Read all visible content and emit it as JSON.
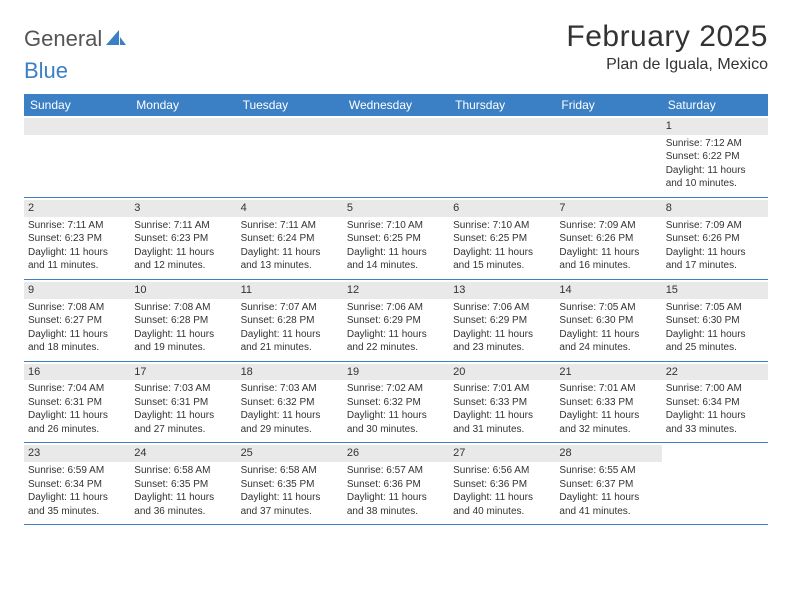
{
  "brand": {
    "part1": "General",
    "part2": "Blue"
  },
  "title": "February 2025",
  "location": "Plan de Iguala, Mexico",
  "colors": {
    "header_bg": "#3b7fc4",
    "header_text": "#ffffff",
    "band_bg": "#e9e9e9",
    "text": "#333333",
    "rule": "#3b7fc4"
  },
  "dayNames": [
    "Sunday",
    "Monday",
    "Tuesday",
    "Wednesday",
    "Thursday",
    "Friday",
    "Saturday"
  ],
  "weeks": [
    [
      {
        "n": "",
        "empty": true
      },
      {
        "n": "",
        "empty": true
      },
      {
        "n": "",
        "empty": true
      },
      {
        "n": "",
        "empty": true
      },
      {
        "n": "",
        "empty": true
      },
      {
        "n": "",
        "empty": true
      },
      {
        "n": "1",
        "sunrise": "Sunrise: 7:12 AM",
        "sunset": "Sunset: 6:22 PM",
        "day1": "Daylight: 11 hours",
        "day2": "and 10 minutes."
      }
    ],
    [
      {
        "n": "2",
        "sunrise": "Sunrise: 7:11 AM",
        "sunset": "Sunset: 6:23 PM",
        "day1": "Daylight: 11 hours",
        "day2": "and 11 minutes."
      },
      {
        "n": "3",
        "sunrise": "Sunrise: 7:11 AM",
        "sunset": "Sunset: 6:23 PM",
        "day1": "Daylight: 11 hours",
        "day2": "and 12 minutes."
      },
      {
        "n": "4",
        "sunrise": "Sunrise: 7:11 AM",
        "sunset": "Sunset: 6:24 PM",
        "day1": "Daylight: 11 hours",
        "day2": "and 13 minutes."
      },
      {
        "n": "5",
        "sunrise": "Sunrise: 7:10 AM",
        "sunset": "Sunset: 6:25 PM",
        "day1": "Daylight: 11 hours",
        "day2": "and 14 minutes."
      },
      {
        "n": "6",
        "sunrise": "Sunrise: 7:10 AM",
        "sunset": "Sunset: 6:25 PM",
        "day1": "Daylight: 11 hours",
        "day2": "and 15 minutes."
      },
      {
        "n": "7",
        "sunrise": "Sunrise: 7:09 AM",
        "sunset": "Sunset: 6:26 PM",
        "day1": "Daylight: 11 hours",
        "day2": "and 16 minutes."
      },
      {
        "n": "8",
        "sunrise": "Sunrise: 7:09 AM",
        "sunset": "Sunset: 6:26 PM",
        "day1": "Daylight: 11 hours",
        "day2": "and 17 minutes."
      }
    ],
    [
      {
        "n": "9",
        "sunrise": "Sunrise: 7:08 AM",
        "sunset": "Sunset: 6:27 PM",
        "day1": "Daylight: 11 hours",
        "day2": "and 18 minutes."
      },
      {
        "n": "10",
        "sunrise": "Sunrise: 7:08 AM",
        "sunset": "Sunset: 6:28 PM",
        "day1": "Daylight: 11 hours",
        "day2": "and 19 minutes."
      },
      {
        "n": "11",
        "sunrise": "Sunrise: 7:07 AM",
        "sunset": "Sunset: 6:28 PM",
        "day1": "Daylight: 11 hours",
        "day2": "and 21 minutes."
      },
      {
        "n": "12",
        "sunrise": "Sunrise: 7:06 AM",
        "sunset": "Sunset: 6:29 PM",
        "day1": "Daylight: 11 hours",
        "day2": "and 22 minutes."
      },
      {
        "n": "13",
        "sunrise": "Sunrise: 7:06 AM",
        "sunset": "Sunset: 6:29 PM",
        "day1": "Daylight: 11 hours",
        "day2": "and 23 minutes."
      },
      {
        "n": "14",
        "sunrise": "Sunrise: 7:05 AM",
        "sunset": "Sunset: 6:30 PM",
        "day1": "Daylight: 11 hours",
        "day2": "and 24 minutes."
      },
      {
        "n": "15",
        "sunrise": "Sunrise: 7:05 AM",
        "sunset": "Sunset: 6:30 PM",
        "day1": "Daylight: 11 hours",
        "day2": "and 25 minutes."
      }
    ],
    [
      {
        "n": "16",
        "sunrise": "Sunrise: 7:04 AM",
        "sunset": "Sunset: 6:31 PM",
        "day1": "Daylight: 11 hours",
        "day2": "and 26 minutes."
      },
      {
        "n": "17",
        "sunrise": "Sunrise: 7:03 AM",
        "sunset": "Sunset: 6:31 PM",
        "day1": "Daylight: 11 hours",
        "day2": "and 27 minutes."
      },
      {
        "n": "18",
        "sunrise": "Sunrise: 7:03 AM",
        "sunset": "Sunset: 6:32 PM",
        "day1": "Daylight: 11 hours",
        "day2": "and 29 minutes."
      },
      {
        "n": "19",
        "sunrise": "Sunrise: 7:02 AM",
        "sunset": "Sunset: 6:32 PM",
        "day1": "Daylight: 11 hours",
        "day2": "and 30 minutes."
      },
      {
        "n": "20",
        "sunrise": "Sunrise: 7:01 AM",
        "sunset": "Sunset: 6:33 PM",
        "day1": "Daylight: 11 hours",
        "day2": "and 31 minutes."
      },
      {
        "n": "21",
        "sunrise": "Sunrise: 7:01 AM",
        "sunset": "Sunset: 6:33 PM",
        "day1": "Daylight: 11 hours",
        "day2": "and 32 minutes."
      },
      {
        "n": "22",
        "sunrise": "Sunrise: 7:00 AM",
        "sunset": "Sunset: 6:34 PM",
        "day1": "Daylight: 11 hours",
        "day2": "and 33 minutes."
      }
    ],
    [
      {
        "n": "23",
        "sunrise": "Sunrise: 6:59 AM",
        "sunset": "Sunset: 6:34 PM",
        "day1": "Daylight: 11 hours",
        "day2": "and 35 minutes."
      },
      {
        "n": "24",
        "sunrise": "Sunrise: 6:58 AM",
        "sunset": "Sunset: 6:35 PM",
        "day1": "Daylight: 11 hours",
        "day2": "and 36 minutes."
      },
      {
        "n": "25",
        "sunrise": "Sunrise: 6:58 AM",
        "sunset": "Sunset: 6:35 PM",
        "day1": "Daylight: 11 hours",
        "day2": "and 37 minutes."
      },
      {
        "n": "26",
        "sunrise": "Sunrise: 6:57 AM",
        "sunset": "Sunset: 6:36 PM",
        "day1": "Daylight: 11 hours",
        "day2": "and 38 minutes."
      },
      {
        "n": "27",
        "sunrise": "Sunrise: 6:56 AM",
        "sunset": "Sunset: 6:36 PM",
        "day1": "Daylight: 11 hours",
        "day2": "and 40 minutes."
      },
      {
        "n": "28",
        "sunrise": "Sunrise: 6:55 AM",
        "sunset": "Sunset: 6:37 PM",
        "day1": "Daylight: 11 hours",
        "day2": "and 41 minutes."
      },
      {
        "n": "",
        "empty": true,
        "noband": true
      }
    ]
  ]
}
